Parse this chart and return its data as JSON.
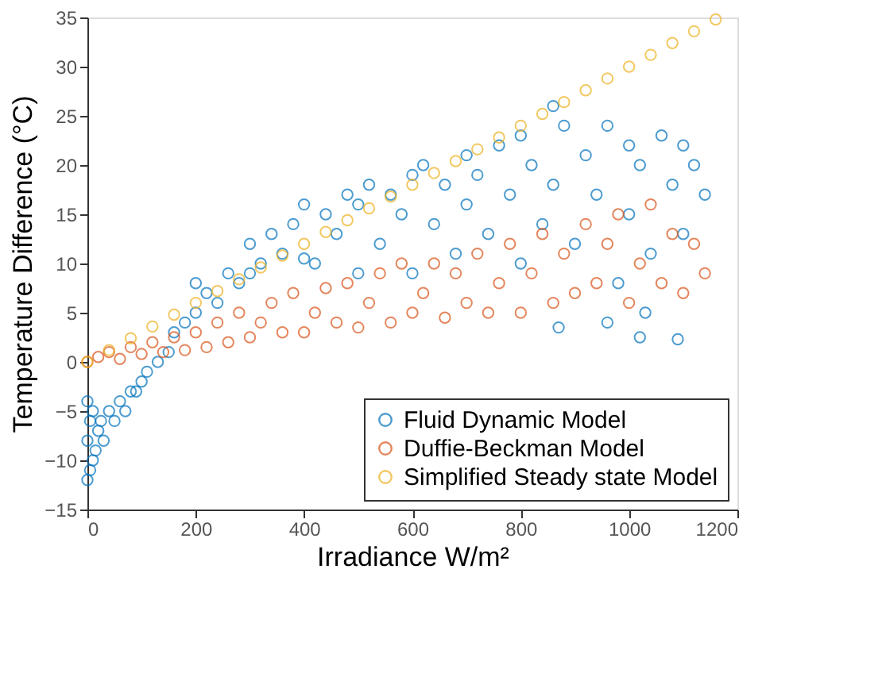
{
  "chart_data": {
    "type": "scatter",
    "xlabel": "Irradiance W/m²",
    "ylabel": "Temperature Difference (°C)",
    "xlim": [
      0,
      1200
    ],
    "xticks": [
      0,
      200,
      400,
      600,
      800,
      1000,
      1200
    ],
    "ylim": [
      -15,
      35
    ],
    "yticks": [
      -15,
      -10,
      -5,
      0,
      5,
      10,
      15,
      20,
      25,
      30,
      35
    ],
    "grid": false,
    "legend": "bottom right",
    "marker": "circle",
    "series": [
      {
        "name": "Fluid Dynamic Model",
        "color": "#0072bd",
        "x": [
          0,
          0,
          0,
          5,
          5,
          10,
          10,
          15,
          20,
          25,
          30,
          40,
          50,
          60,
          70,
          80,
          90,
          100,
          110,
          130,
          150,
          160,
          180,
          200,
          200,
          220,
          240,
          260,
          280,
          300,
          300,
          320,
          340,
          360,
          380,
          400,
          400,
          420,
          440,
          460,
          480,
          500,
          500,
          520,
          540,
          560,
          580,
          600,
          600,
          620,
          640,
          660,
          680,
          700,
          700,
          720,
          740,
          760,
          780,
          800,
          800,
          820,
          840,
          860,
          860,
          880,
          900,
          920,
          940,
          960,
          980,
          1000,
          1000,
          1020,
          1040,
          1060,
          1080,
          1100,
          1100,
          1120,
          1140,
          870,
          1020,
          1090,
          960,
          1030
        ],
        "values": [
          -12,
          -8,
          -4,
          -11,
          -6,
          -10,
          -5,
          -9,
          -7,
          -6,
          -8,
          -5,
          -6,
          -4,
          -5,
          -3,
          -3,
          -2,
          -1,
          0,
          1,
          3,
          4,
          5,
          8,
          7,
          6,
          9,
          8,
          9,
          12,
          10,
          13,
          11,
          14,
          10.5,
          16,
          10,
          15,
          13,
          17,
          9,
          16,
          18,
          12,
          17,
          15,
          19,
          9,
          20,
          14,
          18,
          11,
          21,
          16,
          19,
          13,
          22,
          17,
          23,
          10,
          20,
          14,
          26,
          18,
          24,
          12,
          21,
          17,
          24,
          8,
          22,
          15,
          20,
          11,
          23,
          18,
          22,
          13,
          20,
          17,
          3.5,
          2.5,
          2.3,
          4,
          5
        ]
      },
      {
        "name": "Duffie-Beckman Model",
        "color": "#d95319",
        "x": [
          0,
          20,
          40,
          60,
          80,
          100,
          120,
          140,
          160,
          180,
          200,
          220,
          240,
          260,
          280,
          300,
          320,
          340,
          360,
          380,
          400,
          420,
          440,
          460,
          480,
          500,
          520,
          540,
          560,
          580,
          600,
          620,
          640,
          660,
          680,
          700,
          720,
          740,
          760,
          780,
          800,
          820,
          840,
          860,
          880,
          900,
          920,
          940,
          960,
          980,
          1000,
          1020,
          1040,
          1060,
          1080,
          1100,
          1120,
          1140
        ],
        "values": [
          0,
          0.5,
          1,
          0.3,
          1.5,
          0.8,
          2,
          1,
          2.5,
          1.2,
          3,
          1.5,
          4,
          2,
          5,
          2.5,
          4,
          6,
          3,
          7,
          3,
          5,
          7.5,
          4,
          8,
          3.5,
          6,
          9,
          4,
          10,
          5,
          7,
          10,
          4.5,
          9,
          6,
          11,
          5,
          8,
          12,
          5,
          9,
          13,
          6,
          11,
          7,
          14,
          8,
          12,
          15,
          6,
          10,
          16,
          8,
          13,
          7,
          12,
          9
        ]
      },
      {
        "name": "Simplified Steady state Model",
        "color": "#edb120",
        "x": [
          0,
          40,
          80,
          120,
          160,
          200,
          240,
          280,
          320,
          360,
          400,
          440,
          480,
          520,
          560,
          600,
          640,
          680,
          720,
          760,
          800,
          840,
          880,
          920,
          960,
          1000,
          1040,
          1080,
          1120,
          1160
        ],
        "values": [
          0,
          1.2,
          2.4,
          3.6,
          4.8,
          6,
          7.2,
          8.4,
          9.6,
          10.8,
          12,
          13.2,
          14.4,
          15.6,
          16.8,
          18,
          19.2,
          20.4,
          21.6,
          22.8,
          24,
          25.2,
          26.4,
          27.6,
          28.8,
          30,
          31.2,
          32.4,
          33.6,
          34.8
        ]
      }
    ]
  }
}
